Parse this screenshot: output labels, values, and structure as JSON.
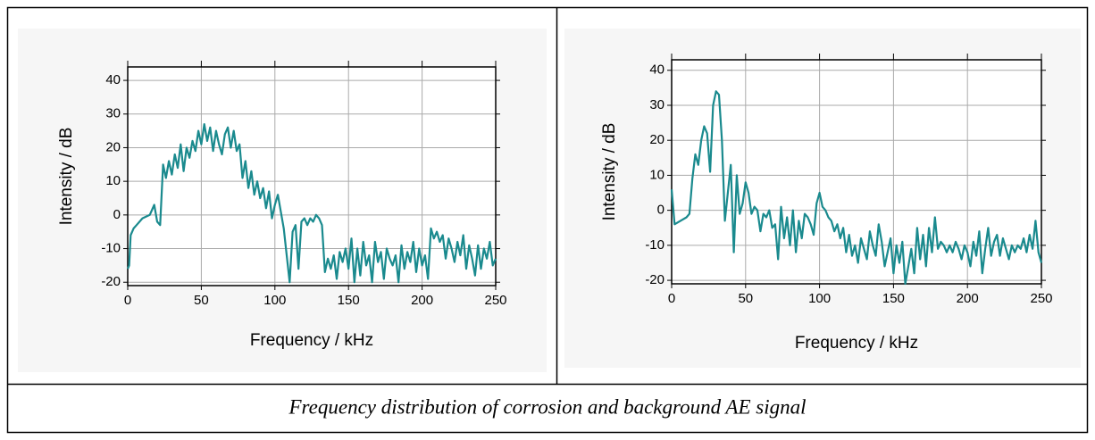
{
  "chart_data": [
    {
      "type": "line",
      "x_label": "Frequency / kHz",
      "y_label": "Intensity / dB",
      "color": "#1a8a8e",
      "xlim": [
        0,
        250
      ],
      "xticks": [
        0,
        50,
        100,
        150,
        200,
        250
      ],
      "ylim": [
        -21,
        44
      ],
      "yticks": [
        -20,
        -10,
        0,
        10,
        20,
        30,
        40
      ],
      "grid": true,
      "x": [
        0,
        1,
        2,
        4,
        6,
        10,
        15,
        18,
        20,
        22,
        24,
        26,
        28,
        30,
        32,
        34,
        36,
        38,
        40,
        42,
        44,
        46,
        48,
        50,
        52,
        54,
        56,
        58,
        60,
        62,
        64,
        66,
        68,
        70,
        72,
        74,
        76,
        78,
        80,
        82,
        84,
        86,
        88,
        90,
        92,
        94,
        96,
        98,
        100,
        102,
        104,
        106,
        108,
        110,
        112,
        114,
        116,
        118,
        120,
        122,
        124,
        126,
        128,
        130,
        132,
        134,
        136,
        138,
        140,
        142,
        144,
        146,
        148,
        150,
        152,
        154,
        156,
        158,
        160,
        162,
        164,
        166,
        168,
        170,
        172,
        174,
        176,
        178,
        180,
        182,
        184,
        186,
        188,
        190,
        192,
        194,
        196,
        198,
        200,
        202,
        204,
        206,
        208,
        210,
        212,
        214,
        216,
        218,
        220,
        222,
        224,
        226,
        228,
        230,
        232,
        234,
        236,
        238,
        240,
        242,
        244,
        246,
        248,
        250
      ],
      "values": [
        -16,
        -15,
        -6,
        -4,
        -3,
        -1,
        0,
        3,
        -2,
        -3,
        15,
        11,
        16,
        12,
        18,
        14,
        21,
        13,
        20,
        17,
        22,
        19,
        25,
        21,
        27,
        22,
        26,
        19,
        25,
        21,
        18,
        24,
        26,
        20,
        25,
        19,
        21,
        11,
        16,
        8,
        13,
        6,
        10,
        5,
        8,
        2,
        7,
        -1,
        3,
        6,
        1,
        -4,
        -12,
        -20,
        -5,
        -3,
        -16,
        -2,
        -1,
        -3,
        -1,
        -2,
        0,
        -1,
        -3,
        -17,
        -13,
        -16,
        -12,
        -19,
        -11,
        -14,
        -10,
        -16,
        -7,
        -20,
        -10,
        -18,
        -8,
        -15,
        -12,
        -20,
        -8,
        -14,
        -11,
        -19,
        -10,
        -13,
        -15,
        -12,
        -20,
        -9,
        -16,
        -11,
        -14,
        -8,
        -17,
        -10,
        -15,
        -12,
        -19,
        -4,
        -7,
        -5,
        -8,
        -6,
        -13,
        -7,
        -10,
        -14,
        -8,
        -12,
        -6,
        -16,
        -9,
        -13,
        -18,
        -9,
        -16,
        -10,
        -13,
        -8,
        -15,
        -13
      ]
    },
    {
      "type": "line",
      "x_label": "Frequency / kHz",
      "y_label": "Intensity / dB",
      "color": "#1a8a8e",
      "xlim": [
        0,
        250
      ],
      "xticks": [
        0,
        50,
        100,
        150,
        200,
        250
      ],
      "ylim": [
        -21,
        43
      ],
      "yticks": [
        -20,
        -10,
        0,
        10,
        20,
        30,
        40
      ],
      "grid": true,
      "x": [
        0,
        2,
        6,
        10,
        12,
        14,
        16,
        18,
        20,
        22,
        24,
        26,
        28,
        30,
        32,
        34,
        36,
        38,
        40,
        42,
        44,
        46,
        48,
        50,
        52,
        54,
        56,
        58,
        60,
        62,
        64,
        66,
        68,
        70,
        72,
        74,
        76,
        78,
        80,
        82,
        84,
        86,
        88,
        90,
        92,
        94,
        96,
        98,
        100,
        102,
        104,
        106,
        108,
        110,
        112,
        114,
        116,
        118,
        120,
        122,
        124,
        126,
        128,
        130,
        132,
        134,
        136,
        138,
        140,
        142,
        144,
        146,
        148,
        150,
        152,
        154,
        156,
        158,
        160,
        162,
        164,
        166,
        168,
        170,
        172,
        174,
        176,
        178,
        180,
        182,
        184,
        186,
        188,
        190,
        192,
        194,
        196,
        198,
        200,
        202,
        204,
        206,
        208,
        210,
        212,
        214,
        216,
        218,
        220,
        222,
        224,
        226,
        228,
        230,
        232,
        234,
        236,
        238,
        240,
        242,
        244,
        246,
        248,
        250
      ],
      "values": [
        6,
        -4,
        -3,
        -2,
        -1,
        9,
        16,
        13,
        20,
        24,
        22,
        11,
        30,
        34,
        33,
        20,
        -3,
        5,
        13,
        -12,
        10,
        -1,
        2,
        8,
        5,
        -1,
        1,
        0,
        -6,
        -1,
        -2,
        0,
        -5,
        -4,
        -14,
        1,
        -8,
        -2,
        -10,
        0,
        -12,
        -3,
        -8,
        -1,
        -2,
        -4,
        -7,
        2,
        5,
        1,
        0,
        -2,
        -3,
        -6,
        -4,
        -8,
        -5,
        -12,
        -7,
        -13,
        -10,
        -15,
        -8,
        -11,
        -14,
        -6,
        -10,
        -13,
        -4,
        -9,
        -16,
        -12,
        -8,
        -18,
        -10,
        -15,
        -9,
        -21,
        -16,
        -11,
        -18,
        -5,
        -14,
        -7,
        -16,
        -5,
        -12,
        -2,
        -11,
        -9,
        -10,
        -12,
        -10,
        -12,
        -9,
        -11,
        -14,
        -10,
        -12,
        -16,
        -9,
        -13,
        -6,
        -18,
        -11,
        -5,
        -13,
        -9,
        -7,
        -13,
        -8,
        -11,
        -14,
        -10,
        -12,
        -10,
        -11,
        -8,
        -12,
        -7,
        -11,
        -3,
        -12,
        -15
      ]
    }
  ],
  "caption": "Frequency distribution of corrosion and background AE signal"
}
